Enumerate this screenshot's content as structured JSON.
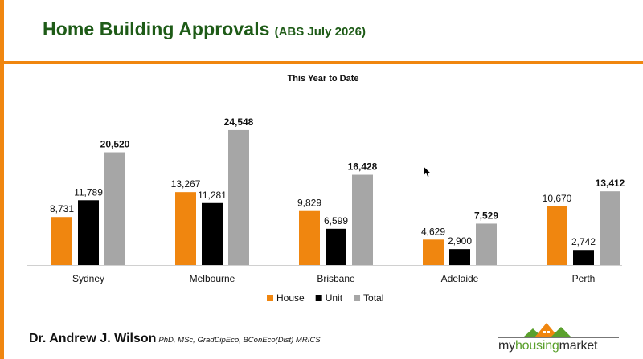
{
  "header": {
    "title": "Home Building Approvals",
    "subtitle": "(ABS July 2026)"
  },
  "footer": {
    "author_name": "Dr. Andrew J. Wilson",
    "author_credentials": "PhD, MSc, GradDipEco, BConEco(Dist) MRICS",
    "logo_text_prefix": "my",
    "logo_text_highlight": "housing",
    "logo_text_suffix": "market"
  },
  "colors": {
    "accent_orange": "#f0860f",
    "title_green": "#1e5b17",
    "house": "#f0860f",
    "unit": "#000000",
    "total": "#a6a6a6",
    "logo_green": "#5aa02c"
  },
  "chart_data": {
    "type": "bar",
    "title": "This Year to Date",
    "categories": [
      "Sydney",
      "Melbourne",
      "Brisbane",
      "Adelaide",
      "Perth"
    ],
    "series": [
      {
        "name": "House",
        "color": "#f0860f",
        "values": [
          8731,
          13267,
          9829,
          4629,
          10670
        ],
        "labels": [
          "8,731",
          "13,267",
          "9,829",
          "4,629",
          "10,670"
        ],
        "bold": false
      },
      {
        "name": "Unit",
        "color": "#000000",
        "values": [
          11789,
          11281,
          6599,
          2900,
          2742
        ],
        "labels": [
          "11,789",
          "11,281",
          "6,599",
          "2,900",
          "2,742"
        ],
        "bold": false
      },
      {
        "name": "Total",
        "color": "#a6a6a6",
        "values": [
          20520,
          24548,
          16428,
          7529,
          13412
        ],
        "labels": [
          "20,520",
          "24,548",
          "16,428",
          "7,529",
          "13,412"
        ],
        "bold": true
      }
    ],
    "ylim": [
      0,
      26000
    ],
    "grid": false,
    "legend": "bottom-center"
  }
}
